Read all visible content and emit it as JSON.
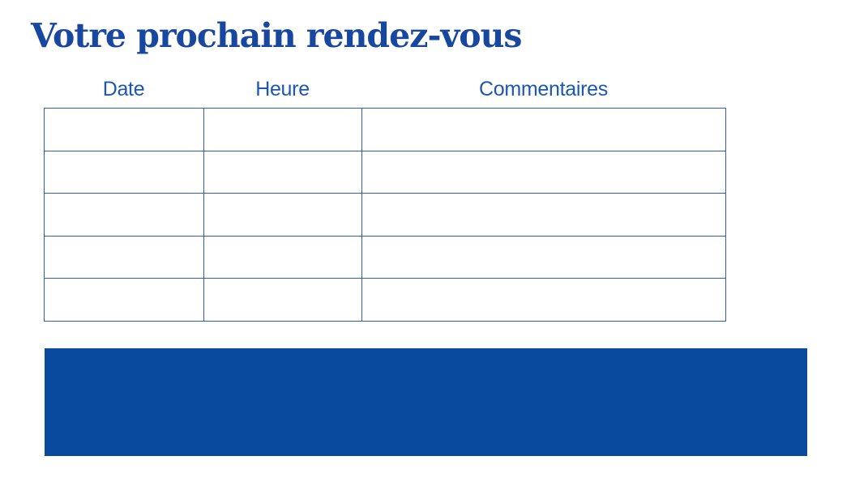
{
  "page": {
    "title": "Votre prochain rendez-vous"
  },
  "table": {
    "headers": [
      "Date",
      "Heure",
      "Commentaires"
    ],
    "rows": [
      [
        "",
        "",
        ""
      ],
      [
        "",
        "",
        ""
      ],
      [
        "",
        "",
        ""
      ],
      [
        "",
        "",
        ""
      ],
      [
        "",
        "",
        ""
      ]
    ]
  },
  "banner": {
    "text": ""
  },
  "colors": {
    "title_blue": "#17479f",
    "header_blue": "#1c57b0",
    "table_border_blue": "#2e5fae",
    "banner_blue": "#0a4a9e",
    "background": "#ffffff"
  }
}
